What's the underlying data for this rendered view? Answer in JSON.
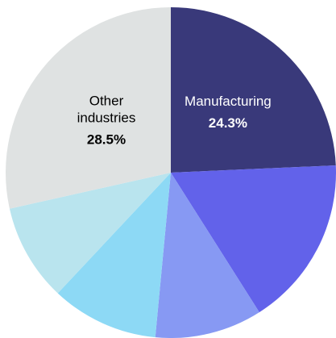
{
  "chart_data": {
    "type": "pie",
    "title": "",
    "start_angle_deg": 0,
    "direction": "clockwise",
    "slices": [
      {
        "label": "Manufacturing",
        "value": 24.3,
        "value_label": "24.3%",
        "color": "#39397a",
        "text_color": "#ffffff"
      },
      {
        "label": "",
        "value": 16.7,
        "value_label": "",
        "color": "#6262ea",
        "text_color": "#ffffff"
      },
      {
        "label": "",
        "value": 10.5,
        "value_label": "",
        "color": "#8799f3",
        "text_color": "#ffffff"
      },
      {
        "label": "",
        "value": 10.5,
        "value_label": "",
        "color": "#8dd9f5",
        "text_color": "#000000"
      },
      {
        "label": "",
        "value": 9.5,
        "value_label": "",
        "color": "#b9e4ee",
        "text_color": "#000000"
      },
      {
        "label": "Other\nindustries",
        "value": 28.5,
        "value_label": "28.5%",
        "color": "#dfe2e2",
        "text_color": "#000000"
      }
    ]
  }
}
